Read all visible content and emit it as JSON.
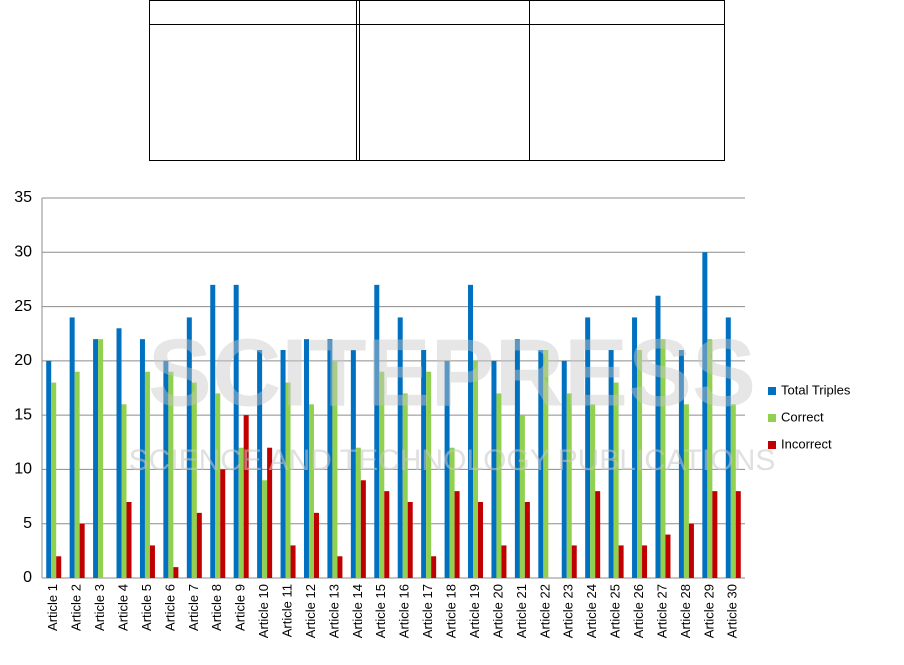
{
  "chart_data": {
    "type": "bar",
    "categories": [
      "Article 1",
      "Article 2",
      "Article 3",
      "Article 4",
      "Article 5",
      "Article 6",
      "Article 7",
      "Article 8",
      "Article 9",
      "Article 10",
      "Article 11",
      "Article 12",
      "Article 13",
      "Article 14",
      "Article 15",
      "Article 16",
      "Article 17",
      "Article 18",
      "Article 19",
      "Article 20",
      "Article 21",
      "Article 22",
      "Article 23",
      "Article 24",
      "Article 25",
      "Article 26",
      "Article 27",
      "Article 28",
      "Article 29",
      "Article 30"
    ],
    "series": [
      {
        "name": "Total Triples",
        "color": "#0070c0",
        "values": [
          20,
          24,
          22,
          23,
          22,
          20,
          24,
          27,
          27,
          21,
          21,
          22,
          22,
          21,
          27,
          24,
          21,
          20,
          27,
          20,
          22,
          21,
          20,
          24,
          21,
          24,
          26,
          21,
          30,
          24
        ]
      },
      {
        "name": "Correct",
        "color": "#92d050",
        "values": [
          18,
          19,
          22,
          16,
          19,
          19,
          18,
          17,
          12,
          9,
          18,
          16,
          20,
          12,
          19,
          17,
          19,
          12,
          20,
          17,
          15,
          21,
          17,
          16,
          18,
          21,
          22,
          16,
          22,
          16
        ]
      },
      {
        "name": "Incorrect",
        "color": "#c00000",
        "values": [
          2,
          5,
          0,
          7,
          3,
          1,
          6,
          10,
          15,
          12,
          3,
          6,
          2,
          9,
          8,
          7,
          2,
          8,
          7,
          3,
          7,
          0,
          3,
          8,
          3,
          3,
          4,
          5,
          8,
          8
        ]
      }
    ],
    "ylim": [
      0,
      35
    ],
    "yticks": [
      0,
      5,
      10,
      15,
      20,
      25,
      30,
      35
    ],
    "grid": true,
    "legend": "right"
  },
  "watermark": {
    "title": "SCITEPRESS",
    "subtitle": "SCIENCE AND TECHNOLOGY PUBLICATIONS"
  }
}
